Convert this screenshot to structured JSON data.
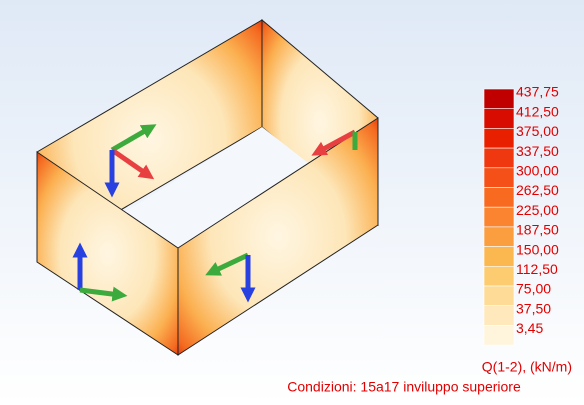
{
  "legend": {
    "items": [
      {
        "label": "437,75",
        "color": "#c00000"
      },
      {
        "label": "412,50",
        "color": "#d80c00"
      },
      {
        "label": "375,00",
        "color": "#e82000"
      },
      {
        "label": "337,50",
        "color": "#f03810"
      },
      {
        "label": "300,00",
        "color": "#f45018"
      },
      {
        "label": "262,50",
        "color": "#f86a20"
      },
      {
        "label": "225,00",
        "color": "#fa8430"
      },
      {
        "label": "187,50",
        "color": "#fb9e40"
      },
      {
        "label": "150,00",
        "color": "#fcb850"
      },
      {
        "label": "112,50",
        "color": "#fdcc70"
      },
      {
        "label": "75,00",
        "color": "#fedc98"
      },
      {
        "label": "37,50",
        "color": "#fee8bc"
      },
      {
        "label": "3,45",
        "color": "#fff4dc"
      }
    ],
    "unit_label": "Q(1-2), (kN/m)"
  },
  "caption": "Condizioni: 15a17  inviluppo superiore"
}
